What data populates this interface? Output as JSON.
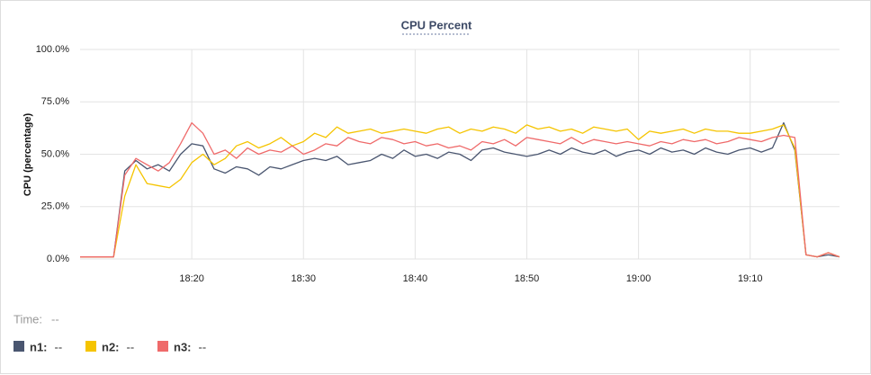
{
  "chart_data": {
    "type": "line",
    "title": "CPU Percent",
    "y_label": "CPU (percentage)",
    "time_label": "Time:",
    "time_value": "--",
    "grid": true,
    "x": [
      "18:10",
      "18:11",
      "18:12",
      "18:13",
      "18:14",
      "18:15",
      "18:16",
      "18:17",
      "18:18",
      "18:19",
      "18:20",
      "18:21",
      "18:22",
      "18:23",
      "18:24",
      "18:25",
      "18:26",
      "18:27",
      "18:28",
      "18:29",
      "18:30",
      "18:31",
      "18:32",
      "18:33",
      "18:34",
      "18:35",
      "18:36",
      "18:37",
      "18:38",
      "18:39",
      "18:40",
      "18:41",
      "18:42",
      "18:43",
      "18:44",
      "18:45",
      "18:46",
      "18:47",
      "18:48",
      "18:49",
      "18:50",
      "18:51",
      "18:52",
      "18:53",
      "18:54",
      "18:55",
      "18:56",
      "18:57",
      "18:58",
      "18:59",
      "19:00",
      "19:01",
      "19:02",
      "19:03",
      "19:04",
      "19:05",
      "19:06",
      "19:07",
      "19:08",
      "19:09",
      "19:10",
      "19:11",
      "19:12",
      "19:13",
      "19:14",
      "19:15",
      "19:16",
      "19:17",
      "19:18"
    ],
    "xlim": [
      "18:10",
      "19:18"
    ],
    "xticks": [
      "18:20",
      "18:30",
      "18:40",
      "18:50",
      "19:00",
      "19:10"
    ],
    "ylim": [
      0,
      100
    ],
    "yticks": [
      {
        "value": 0,
        "label": "0.0%"
      },
      {
        "value": 25,
        "label": "25.0%"
      },
      {
        "value": 50,
        "label": "50.0%"
      },
      {
        "value": 75,
        "label": "75.0%"
      },
      {
        "value": 100,
        "label": "100.0%"
      }
    ],
    "series": [
      {
        "name": "n1:",
        "color": "#4a5670",
        "hover_value": "--",
        "values": [
          1,
          1,
          1,
          1,
          42,
          47,
          43,
          45,
          42,
          50,
          55,
          54,
          43,
          41,
          44,
          43,
          40,
          44,
          43,
          45,
          47,
          48,
          47,
          49,
          45,
          46,
          47,
          50,
          48,
          52,
          49,
          50,
          48,
          51,
          50,
          47,
          52,
          53,
          51,
          50,
          49,
          50,
          52,
          50,
          53,
          51,
          50,
          52,
          49,
          51,
          52,
          50,
          53,
          51,
          52,
          50,
          53,
          51,
          50,
          52,
          53,
          51,
          53,
          65,
          52,
          2,
          1,
          2,
          1
        ]
      },
      {
        "name": "n2:",
        "color": "#f5c400",
        "hover_value": "--",
        "values": [
          1,
          1,
          1,
          1,
          30,
          45,
          36,
          35,
          34,
          38,
          46,
          50,
          45,
          48,
          54,
          56,
          53,
          55,
          58,
          54,
          56,
          60,
          58,
          63,
          60,
          61,
          62,
          60,
          61,
          62,
          61,
          60,
          62,
          63,
          60,
          62,
          61,
          63,
          62,
          60,
          64,
          62,
          63,
          61,
          62,
          60,
          63,
          62,
          61,
          62,
          57,
          61,
          60,
          61,
          62,
          60,
          62,
          61,
          61,
          60,
          60,
          61,
          62,
          64,
          53,
          2,
          1,
          3,
          1
        ]
      },
      {
        "name": "n3:",
        "color": "#ef6a6a",
        "hover_value": "--",
        "values": [
          1,
          1,
          1,
          1,
          40,
          48,
          45,
          42,
          46,
          55,
          65,
          60,
          50,
          52,
          48,
          53,
          50,
          52,
          51,
          54,
          50,
          52,
          55,
          54,
          58,
          56,
          55,
          58,
          57,
          55,
          56,
          54,
          55,
          53,
          54,
          52,
          56,
          55,
          57,
          54,
          58,
          57,
          56,
          55,
          58,
          55,
          57,
          56,
          55,
          56,
          55,
          54,
          56,
          55,
          57,
          56,
          57,
          55,
          56,
          58,
          57,
          56,
          58,
          59,
          58,
          2,
          1,
          3,
          1
        ]
      }
    ]
  }
}
